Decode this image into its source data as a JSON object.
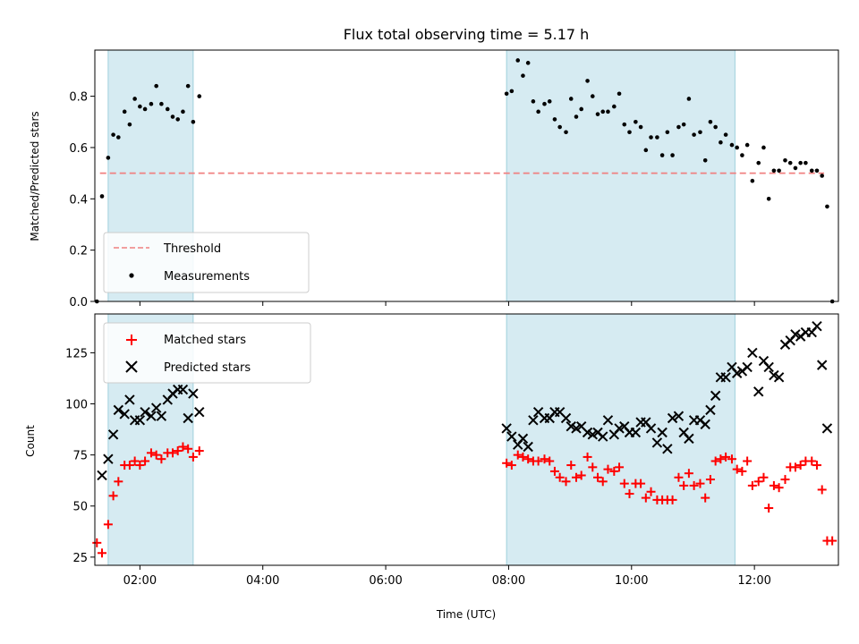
{
  "chart_data": [
    {
      "type": "scatter",
      "title": "Flux total observing time = 5.17 h",
      "xlabel": "",
      "ylabel": "Matched/Predicted stars",
      "xlim": [
        "01:16",
        "13:22"
      ],
      "ylim": [
        0,
        0.98
      ],
      "yticks": [
        "0.0",
        "0.2",
        "0.4",
        "0.6",
        "0.8"
      ],
      "shaded_intervals": [
        [
          "01:29",
          "02:52"
        ],
        [
          "07:58",
          "11:41"
        ]
      ],
      "legend_position": "lower-left",
      "legend": [
        "Threshold",
        "Measurements"
      ],
      "threshold": {
        "name": "Threshold",
        "value": 0.5,
        "x_start": "01:21",
        "x_end": "13:08",
        "color": "#f08080",
        "style": "dashed"
      },
      "series": [
        {
          "name": "Measurements",
          "color": "#000000",
          "marker": "dot",
          "points": [
            [
              "01:18",
              0.0
            ],
            [
              "01:23",
              0.41
            ],
            [
              "01:29",
              0.56
            ],
            [
              "01:34",
              0.65
            ],
            [
              "01:39",
              0.64
            ],
            [
              "01:45",
              0.74
            ],
            [
              "01:50",
              0.69
            ],
            [
              "01:55",
              0.79
            ],
            [
              "02:00",
              0.76
            ],
            [
              "02:05",
              0.75
            ],
            [
              "02:11",
              0.77
            ],
            [
              "02:16",
              0.84
            ],
            [
              "02:21",
              0.77
            ],
            [
              "02:27",
              0.75
            ],
            [
              "02:32",
              0.72
            ],
            [
              "02:37",
              0.71
            ],
            [
              "02:42",
              0.74
            ],
            [
              "02:47",
              0.84
            ],
            [
              "02:52",
              0.7
            ],
            [
              "02:58",
              0.8
            ],
            [
              "07:58",
              0.81
            ],
            [
              "08:03",
              0.82
            ],
            [
              "08:09",
              0.94
            ],
            [
              "08:14",
              0.88
            ],
            [
              "08:19",
              0.93
            ],
            [
              "08:24",
              0.78
            ],
            [
              "08:29",
              0.74
            ],
            [
              "08:35",
              0.77
            ],
            [
              "08:40",
              0.78
            ],
            [
              "08:45",
              0.71
            ],
            [
              "08:50",
              0.68
            ],
            [
              "08:56",
              0.66
            ],
            [
              "09:01",
              0.79
            ],
            [
              "09:06",
              0.72
            ],
            [
              "09:11",
              0.75
            ],
            [
              "09:17",
              0.86
            ],
            [
              "09:22",
              0.8
            ],
            [
              "09:27",
              0.73
            ],
            [
              "09:32",
              0.74
            ],
            [
              "09:37",
              0.74
            ],
            [
              "09:43",
              0.76
            ],
            [
              "09:48",
              0.81
            ],
            [
              "09:53",
              0.69
            ],
            [
              "09:58",
              0.66
            ],
            [
              "10:04",
              0.7
            ],
            [
              "10:09",
              0.68
            ],
            [
              "10:14",
              0.59
            ],
            [
              "10:19",
              0.64
            ],
            [
              "10:25",
              0.64
            ],
            [
              "10:30",
              0.57
            ],
            [
              "10:35",
              0.66
            ],
            [
              "10:40",
              0.57
            ],
            [
              "10:46",
              0.68
            ],
            [
              "10:51",
              0.69
            ],
            [
              "10:56",
              0.79
            ],
            [
              "11:01",
              0.65
            ],
            [
              "11:07",
              0.66
            ],
            [
              "11:12",
              0.55
            ],
            [
              "11:17",
              0.7
            ],
            [
              "11:22",
              0.68
            ],
            [
              "11:27",
              0.62
            ],
            [
              "11:32",
              0.65
            ],
            [
              "11:38",
              0.61
            ],
            [
              "11:43",
              0.6
            ],
            [
              "11:48",
              0.57
            ],
            [
              "11:53",
              0.61
            ],
            [
              "11:58",
              0.47
            ],
            [
              "12:04",
              0.54
            ],
            [
              "12:09",
              0.6
            ],
            [
              "12:14",
              0.4
            ],
            [
              "12:19",
              0.51
            ],
            [
              "12:24",
              0.51
            ],
            [
              "12:30",
              0.55
            ],
            [
              "12:35",
              0.54
            ],
            [
              "12:40",
              0.52
            ],
            [
              "12:45",
              0.54
            ],
            [
              "12:50",
              0.54
            ],
            [
              "12:56",
              0.51
            ],
            [
              "13:01",
              0.51
            ],
            [
              "13:06",
              0.49
            ],
            [
              "13:11",
              0.37
            ],
            [
              "13:16",
              0.0
            ]
          ]
        }
      ]
    },
    {
      "type": "scatter",
      "title": "",
      "xlabel": "Time (UTC)",
      "ylabel": "Count",
      "xlim": [
        "01:16",
        "13:22"
      ],
      "ylim": [
        21,
        144
      ],
      "yticks": [
        "25",
        "50",
        "75",
        "100",
        "125"
      ],
      "xticks": [
        "02:00",
        "04:00",
        "06:00",
        "08:00",
        "10:00",
        "12:00"
      ],
      "shaded_intervals": [
        [
          "01:29",
          "02:52"
        ],
        [
          "07:58",
          "11:41"
        ]
      ],
      "legend_position": "top-left",
      "legend": [
        "Matched stars",
        "Predicted stars"
      ],
      "series": [
        {
          "name": "Matched stars",
          "color": "#ff0000",
          "marker": "plus",
          "points": [
            [
              "01:18",
              32
            ],
            [
              "01:23",
              27
            ],
            [
              "01:29",
              41
            ],
            [
              "01:34",
              55
            ],
            [
              "01:39",
              62
            ],
            [
              "01:45",
              70
            ],
            [
              "01:50",
              70
            ],
            [
              "01:55",
              72
            ],
            [
              "02:00",
              70
            ],
            [
              "02:05",
              72
            ],
            [
              "02:11",
              76
            ],
            [
              "02:16",
              75
            ],
            [
              "02:21",
              73
            ],
            [
              "02:27",
              76
            ],
            [
              "02:32",
              76
            ],
            [
              "02:37",
              77
            ],
            [
              "02:42",
              79
            ],
            [
              "02:47",
              78
            ],
            [
              "02:52",
              74
            ],
            [
              "02:58",
              77
            ],
            [
              "07:58",
              71
            ],
            [
              "08:03",
              70
            ],
            [
              "08:09",
              75
            ],
            [
              "08:14",
              74
            ],
            [
              "08:19",
              73
            ],
            [
              "08:24",
              72
            ],
            [
              "08:29",
              72
            ],
            [
              "08:35",
              73
            ],
            [
              "08:40",
              72
            ],
            [
              "08:45",
              67
            ],
            [
              "08:50",
              64
            ],
            [
              "08:56",
              62
            ],
            [
              "09:01",
              70
            ],
            [
              "09:06",
              64
            ],
            [
              "09:11",
              65
            ],
            [
              "09:17",
              74
            ],
            [
              "09:22",
              69
            ],
            [
              "09:27",
              64
            ],
            [
              "09:32",
              62
            ],
            [
              "09:37",
              68
            ],
            [
              "09:43",
              67
            ],
            [
              "09:48",
              69
            ],
            [
              "09:53",
              61
            ],
            [
              "09:58",
              56
            ],
            [
              "10:04",
              61
            ],
            [
              "10:09",
              61
            ],
            [
              "10:14",
              54
            ],
            [
              "10:19",
              57
            ],
            [
              "10:25",
              53
            ],
            [
              "10:30",
              53
            ],
            [
              "10:35",
              53
            ],
            [
              "10:40",
              53
            ],
            [
              "10:46",
              64
            ],
            [
              "10:51",
              60
            ],
            [
              "10:56",
              66
            ],
            [
              "11:01",
              60
            ],
            [
              "11:07",
              61
            ],
            [
              "11:12",
              54
            ],
            [
              "11:17",
              63
            ],
            [
              "11:22",
              72
            ],
            [
              "11:27",
              73
            ],
            [
              "11:32",
              74
            ],
            [
              "11:38",
              73
            ],
            [
              "11:43",
              68
            ],
            [
              "11:48",
              67
            ],
            [
              "11:53",
              72
            ],
            [
              "11:58",
              60
            ],
            [
              "12:04",
              62
            ],
            [
              "12:09",
              64
            ],
            [
              "12:14",
              49
            ],
            [
              "12:19",
              60
            ],
            [
              "12:24",
              59
            ],
            [
              "12:30",
              63
            ],
            [
              "12:35",
              69
            ],
            [
              "12:40",
              69
            ],
            [
              "12:45",
              70
            ],
            [
              "12:50",
              72
            ],
            [
              "12:56",
              72
            ],
            [
              "13:01",
              70
            ],
            [
              "13:06",
              58
            ],
            [
              "13:11",
              33
            ],
            [
              "13:16",
              33
            ]
          ]
        },
        {
          "name": "Predicted stars",
          "color": "#000000",
          "marker": "x",
          "points": [
            [
              "01:23",
              65
            ],
            [
              "01:29",
              73
            ],
            [
              "01:34",
              85
            ],
            [
              "01:39",
              97
            ],
            [
              "01:45",
              95
            ],
            [
              "01:50",
              102
            ],
            [
              "01:55",
              92
            ],
            [
              "02:00",
              92
            ],
            [
              "02:05",
              96
            ],
            [
              "02:11",
              94
            ],
            [
              "02:16",
              98
            ],
            [
              "02:21",
              94
            ],
            [
              "02:27",
              102
            ],
            [
              "02:32",
              105
            ],
            [
              "02:37",
              107
            ],
            [
              "02:42",
              107
            ],
            [
              "02:47",
              93
            ],
            [
              "02:52",
              105
            ],
            [
              "02:58",
              96
            ],
            [
              "07:58",
              88
            ],
            [
              "08:03",
              84
            ],
            [
              "08:09",
              80
            ],
            [
              "08:14",
              83
            ],
            [
              "08:19",
              79
            ],
            [
              "08:24",
              92
            ],
            [
              "08:29",
              96
            ],
            [
              "08:35",
              93
            ],
            [
              "08:40",
              93
            ],
            [
              "08:45",
              96
            ],
            [
              "08:50",
              96
            ],
            [
              "08:56",
              93
            ],
            [
              "09:01",
              89
            ],
            [
              "09:06",
              88
            ],
            [
              "09:11",
              89
            ],
            [
              "09:17",
              86
            ],
            [
              "09:22",
              85
            ],
            [
              "09:27",
              86
            ],
            [
              "09:32",
              84
            ],
            [
              "09:37",
              92
            ],
            [
              "09:43",
              85
            ],
            [
              "09:48",
              88
            ],
            [
              "09:53",
              89
            ],
            [
              "09:58",
              86
            ],
            [
              "10:04",
              86
            ],
            [
              "10:09",
              91
            ],
            [
              "10:14",
              91
            ],
            [
              "10:19",
              88
            ],
            [
              "10:25",
              81
            ],
            [
              "10:30",
              86
            ],
            [
              "10:35",
              78
            ],
            [
              "10:40",
              93
            ],
            [
              "10:46",
              94
            ],
            [
              "10:51",
              86
            ],
            [
              "10:56",
              83
            ],
            [
              "11:01",
              92
            ],
            [
              "11:07",
              92
            ],
            [
              "11:12",
              90
            ],
            [
              "11:17",
              97
            ],
            [
              "11:22",
              104
            ],
            [
              "11:27",
              113
            ],
            [
              "11:32",
              113
            ],
            [
              "11:38",
              118
            ],
            [
              "11:43",
              115
            ],
            [
              "11:48",
              116
            ],
            [
              "11:53",
              118
            ],
            [
              "11:58",
              125
            ],
            [
              "12:04",
              106
            ],
            [
              "12:09",
              121
            ],
            [
              "12:14",
              118
            ],
            [
              "12:19",
              114
            ],
            [
              "12:24",
              113
            ],
            [
              "12:30",
              129
            ],
            [
              "12:35",
              131
            ],
            [
              "12:40",
              134
            ],
            [
              "12:45",
              133
            ],
            [
              "12:50",
              135
            ],
            [
              "12:56",
              135
            ],
            [
              "13:01",
              138
            ],
            [
              "13:06",
              119
            ],
            [
              "13:11",
              88
            ]
          ]
        }
      ]
    }
  ]
}
